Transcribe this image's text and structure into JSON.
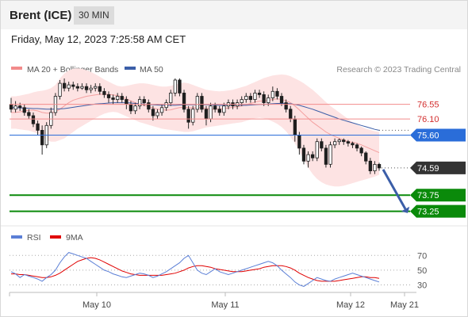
{
  "header": {
    "instrument": "Brent (ICE)",
    "timeframe": "30 MIN"
  },
  "timestamp": "Friday, May 12, 2023 7:25:58 AM CET",
  "legend": {
    "bollinger": {
      "label": "MA 20 + Bollinger Bands",
      "color": "#f28b8b"
    },
    "ma50": {
      "label": "MA 50",
      "color": "#3b5ea8"
    },
    "credit": "Research © 2023 Trading Central"
  },
  "rsi_legend": {
    "rsi": {
      "label": "RSI",
      "color": "#5b7fd6"
    },
    "ma9": {
      "label": "9MA",
      "color": "#e00000"
    }
  },
  "chart_data": [
    {
      "type": "candlestick",
      "x_labels": [
        "May 10",
        "May 11",
        "May 12",
        "May 21"
      ],
      "ylim": [
        72.9,
        77.3
      ],
      "price_levels": [
        {
          "value": 76.55,
          "label": "76.55",
          "style": "resistance",
          "color": "#f28b8b"
        },
        {
          "value": 76.1,
          "label": "76.10",
          "style": "resistance",
          "color": "#f28b8b"
        },
        {
          "value": 75.6,
          "label": "75.60",
          "style": "pivot",
          "color": "#2a6dd9"
        },
        {
          "value": 73.75,
          "label": "73.75",
          "style": "support",
          "color": "#0a8a0a"
        },
        {
          "value": 73.25,
          "label": "73.25",
          "style": "support",
          "color": "#0a8a0a"
        }
      ],
      "last_price": {
        "value": 74.59,
        "label": "74.59"
      },
      "candles": [
        [
          76.55,
          76.4,
          76.75,
          76.3
        ],
        [
          76.4,
          76.5,
          76.65,
          76.3
        ],
        [
          76.5,
          76.45,
          76.6,
          76.35
        ],
        [
          76.45,
          76.3,
          76.55,
          76.2
        ],
        [
          76.3,
          76.2,
          76.4,
          76.1
        ],
        [
          76.2,
          75.95,
          76.3,
          75.85
        ],
        [
          75.95,
          75.75,
          76.05,
          75.6
        ],
        [
          75.75,
          75.3,
          75.9,
          75.0
        ],
        [
          75.3,
          75.9,
          76.0,
          75.2
        ],
        [
          75.9,
          76.3,
          76.45,
          75.8
        ],
        [
          76.3,
          76.8,
          76.9,
          76.2
        ],
        [
          76.8,
          77.2,
          77.3,
          76.7
        ],
        [
          77.2,
          77.05,
          77.35,
          76.95
        ],
        [
          77.05,
          77.15,
          77.25,
          76.95
        ],
        [
          77.15,
          77.1,
          77.25,
          77.0
        ],
        [
          77.1,
          77.05,
          77.2,
          76.95
        ],
        [
          77.05,
          77.1,
          77.2,
          77.0
        ],
        [
          77.1,
          77.0,
          77.2,
          76.9
        ],
        [
          77.0,
          77.05,
          77.15,
          76.9
        ],
        [
          77.05,
          77.1,
          77.2,
          76.95
        ],
        [
          77.1,
          76.95,
          77.2,
          76.85
        ],
        [
          76.95,
          76.85,
          77.05,
          76.75
        ],
        [
          76.85,
          76.75,
          76.95,
          76.6
        ],
        [
          76.75,
          76.7,
          76.85,
          76.55
        ],
        [
          76.7,
          76.8,
          76.9,
          76.6
        ],
        [
          76.8,
          76.7,
          76.9,
          76.6
        ],
        [
          76.7,
          76.55,
          76.8,
          76.4
        ],
        [
          76.55,
          76.35,
          76.65,
          76.25
        ],
        [
          76.35,
          76.5,
          76.6,
          76.25
        ],
        [
          76.5,
          76.7,
          76.8,
          76.4
        ],
        [
          76.7,
          76.6,
          76.8,
          76.5
        ],
        [
          76.6,
          76.4,
          76.7,
          76.3
        ],
        [
          76.4,
          76.2,
          76.5,
          76.05
        ],
        [
          76.2,
          76.3,
          76.4,
          76.1
        ],
        [
          76.3,
          76.45,
          76.55,
          76.2
        ],
        [
          76.45,
          76.6,
          76.7,
          76.35
        ],
        [
          76.6,
          76.9,
          77.0,
          76.5
        ],
        [
          76.9,
          77.3,
          77.35,
          76.8
        ],
        [
          77.3,
          76.9,
          77.35,
          76.8
        ],
        [
          76.9,
          76.4,
          77.0,
          76.3
        ],
        [
          76.4,
          76.0,
          76.5,
          75.8
        ],
        [
          76.0,
          76.4,
          76.5,
          75.9
        ],
        [
          76.4,
          76.8,
          76.9,
          76.3
        ],
        [
          76.8,
          76.4,
          76.9,
          76.3
        ],
        [
          76.4,
          76.1,
          76.5,
          75.9
        ],
        [
          76.1,
          76.5,
          76.6,
          76.0
        ],
        [
          76.5,
          76.4,
          76.6,
          76.3
        ],
        [
          76.4,
          76.3,
          76.5,
          76.2
        ],
        [
          76.3,
          76.5,
          76.6,
          76.2
        ],
        [
          76.5,
          76.6,
          76.7,
          76.4
        ],
        [
          76.6,
          76.5,
          76.7,
          76.4
        ],
        [
          76.5,
          76.6,
          76.7,
          76.4
        ],
        [
          76.6,
          76.7,
          76.8,
          76.5
        ],
        [
          76.7,
          76.8,
          76.9,
          76.6
        ],
        [
          76.8,
          76.7,
          76.9,
          76.6
        ],
        [
          76.7,
          76.9,
          77.0,
          76.6
        ],
        [
          76.9,
          76.85,
          77.0,
          76.75
        ],
        [
          76.85,
          76.6,
          76.95,
          76.5
        ],
        [
          76.6,
          76.75,
          76.85,
          76.5
        ],
        [
          76.75,
          76.95,
          77.1,
          76.65
        ],
        [
          76.95,
          76.8,
          77.05,
          76.7
        ],
        [
          76.8,
          76.6,
          76.9,
          76.5
        ],
        [
          76.6,
          76.4,
          76.7,
          76.3
        ],
        [
          76.4,
          76.1,
          76.5,
          76.0
        ],
        [
          76.1,
          75.6,
          76.2,
          75.4
        ],
        [
          75.6,
          75.2,
          75.7,
          75.0
        ],
        [
          75.2,
          74.8,
          75.3,
          74.7
        ],
        [
          74.8,
          75.0,
          75.1,
          74.6
        ],
        [
          75.0,
          74.9,
          75.1,
          74.8
        ],
        [
          74.9,
          75.4,
          75.5,
          74.8
        ],
        [
          75.4,
          75.2,
          75.5,
          75.1
        ],
        [
          75.2,
          74.7,
          75.3,
          74.6
        ],
        [
          74.7,
          75.3,
          75.4,
          74.6
        ],
        [
          75.3,
          75.4,
          75.5,
          75.2
        ],
        [
          75.4,
          75.45,
          75.5,
          75.3
        ],
        [
          75.45,
          75.4,
          75.5,
          75.3
        ],
        [
          75.4,
          75.35,
          75.45,
          75.25
        ],
        [
          75.35,
          75.3,
          75.4,
          75.2
        ],
        [
          75.3,
          75.2,
          75.35,
          75.1
        ],
        [
          75.2,
          75.05,
          75.25,
          74.95
        ],
        [
          75.05,
          74.8,
          75.1,
          74.7
        ],
        [
          74.8,
          74.5,
          74.9,
          74.4
        ],
        [
          74.5,
          74.7,
          74.8,
          74.4
        ],
        [
          74.7,
          74.59,
          74.75,
          74.5
        ]
      ],
      "ma20": [
        76.3,
        76.3,
        76.32,
        76.35,
        76.37,
        76.37,
        76.35,
        76.3,
        76.28,
        76.28,
        76.32,
        76.4,
        76.5,
        76.6,
        76.68,
        76.72,
        76.76,
        76.8,
        76.82,
        76.84,
        76.86,
        76.86,
        76.86,
        76.84,
        76.82,
        76.78,
        76.72,
        76.66,
        76.6,
        76.55,
        76.52,
        76.48,
        76.44,
        76.4,
        76.38,
        76.37,
        76.38,
        76.42,
        76.45,
        76.46,
        76.45,
        76.44,
        76.45,
        76.45,
        76.42,
        76.4,
        76.4,
        76.4,
        76.42,
        76.44,
        76.46,
        76.48,
        76.5,
        76.54,
        76.58,
        76.62,
        76.65,
        76.66,
        76.67,
        76.7,
        76.72,
        76.7,
        76.66,
        76.6,
        76.5,
        76.38,
        76.25,
        76.12,
        76.0,
        75.9,
        75.8,
        75.7,
        75.62,
        75.56,
        75.5,
        75.45,
        75.4,
        75.38,
        75.35,
        75.3,
        75.24,
        75.18,
        75.12,
        75.06
      ],
      "bb_upper": [
        76.8,
        76.8,
        76.82,
        76.85,
        76.88,
        76.92,
        76.95,
        76.97,
        77.0,
        77.05,
        77.15,
        77.35,
        77.5,
        77.6,
        77.65,
        77.66,
        77.65,
        77.6,
        77.55,
        77.48,
        77.4,
        77.32,
        77.25,
        77.18,
        77.12,
        77.1,
        77.12,
        77.15,
        77.18,
        77.2,
        77.2,
        77.18,
        77.15,
        77.12,
        77.1,
        77.1,
        77.12,
        77.16,
        77.2,
        77.22,
        77.2,
        77.15,
        77.1,
        77.05,
        77.0,
        76.98,
        76.96,
        76.95,
        76.96,
        76.98,
        77.0,
        77.04,
        77.08,
        77.12,
        77.18,
        77.24,
        77.3,
        77.36,
        77.4,
        77.44,
        77.46,
        77.47,
        77.46,
        77.42,
        77.35,
        77.28,
        77.2,
        77.1,
        77.0,
        76.88,
        76.75,
        76.62,
        76.5,
        76.4,
        76.3,
        76.2,
        76.1,
        76.0,
        75.92,
        75.86,
        75.8,
        75.76,
        75.72,
        75.7
      ],
      "bb_lower": [
        75.8,
        75.8,
        75.78,
        75.76,
        75.74,
        75.7,
        75.65,
        75.55,
        75.45,
        75.4,
        75.4,
        75.45,
        75.5,
        75.6,
        75.7,
        75.8,
        75.88,
        75.96,
        76.04,
        76.12,
        76.2,
        76.26,
        76.3,
        76.32,
        76.3,
        76.24,
        76.18,
        76.12,
        76.06,
        76.0,
        75.96,
        75.92,
        75.88,
        75.84,
        75.8,
        75.78,
        75.76,
        75.74,
        75.72,
        75.7,
        75.7,
        75.72,
        75.76,
        75.8,
        75.84,
        75.86,
        75.88,
        75.9,
        75.92,
        75.94,
        75.96,
        75.98,
        76.0,
        76.04,
        76.08,
        76.12,
        76.14,
        76.12,
        76.08,
        76.02,
        75.95,
        75.85,
        75.72,
        75.55,
        75.35,
        75.1,
        74.85,
        74.6,
        74.4,
        74.25,
        74.15,
        74.08,
        74.04,
        74.02,
        74.02,
        74.04,
        74.08,
        74.12,
        74.16,
        74.2,
        74.24,
        74.28,
        74.32,
        74.38
      ],
      "ma50": [
        76.45,
        76.45,
        76.44,
        76.44,
        76.43,
        76.42,
        76.42,
        76.41,
        76.4,
        76.4,
        76.4,
        76.41,
        76.42,
        76.44,
        76.46,
        76.48,
        76.5,
        76.52,
        76.54,
        76.56,
        76.57,
        76.58,
        76.59,
        76.6,
        76.6,
        76.6,
        76.6,
        76.59,
        76.58,
        76.57,
        76.56,
        76.55,
        76.54,
        76.53,
        76.52,
        76.52,
        76.52,
        76.52,
        76.53,
        76.54,
        76.54,
        76.54,
        76.54,
        76.54,
        76.54,
        76.54,
        76.53,
        76.52,
        76.52,
        76.52,
        76.52,
        76.52,
        76.52,
        76.52,
        76.53,
        76.54,
        76.55,
        76.55,
        76.56,
        76.57,
        76.58,
        76.58,
        76.58,
        76.57,
        76.55,
        76.52,
        76.48,
        76.44,
        76.4,
        76.35,
        76.3,
        76.25,
        76.2,
        76.15,
        76.1,
        76.06,
        76.02,
        75.98,
        75.94,
        75.9,
        75.86,
        75.82,
        75.78,
        75.75
      ],
      "forecast_arrow": {
        "from": 74.59,
        "to": 73.25
      }
    },
    {
      "type": "line",
      "name": "RSI panel",
      "y_ticks": [
        70,
        50,
        30
      ],
      "ylim": [
        22,
        80
      ],
      "rsi": [
        48,
        45,
        40,
        44,
        42,
        40,
        38,
        35,
        40,
        44,
        50,
        60,
        68,
        74,
        72,
        70,
        68,
        66,
        62,
        58,
        54,
        50,
        48,
        45,
        43,
        41,
        40,
        42,
        44,
        46,
        45,
        43,
        40,
        42,
        45,
        48,
        52,
        56,
        60,
        66,
        70,
        60,
        50,
        46,
        44,
        48,
        52,
        48,
        46,
        44,
        46,
        48,
        50,
        52,
        54,
        56,
        58,
        60,
        62,
        60,
        56,
        50,
        45,
        40,
        34,
        30,
        28,
        32,
        36,
        40,
        38,
        36,
        35,
        38,
        40,
        42,
        44,
        46,
        44,
        42,
        40,
        38,
        36,
        34
      ],
      "ma9": [
        45,
        45,
        44,
        44,
        43,
        42,
        41,
        40,
        40,
        41,
        43,
        46,
        50,
        54,
        58,
        62,
        64,
        66,
        67,
        66,
        64,
        61,
        58,
        55,
        52,
        49,
        47,
        45,
        44,
        43,
        43,
        43,
        43,
        43,
        43,
        44,
        45,
        46,
        48,
        50,
        53,
        55,
        56,
        56,
        55,
        54,
        52,
        51,
        50,
        49,
        48,
        48,
        48,
        49,
        50,
        51,
        52,
        54,
        55,
        56,
        56,
        56,
        55,
        53,
        50,
        46,
        43,
        40,
        38,
        36,
        35,
        35,
        35,
        35,
        36,
        37,
        38,
        39,
        40,
        41,
        41,
        40,
        40,
        39
      ]
    }
  ]
}
